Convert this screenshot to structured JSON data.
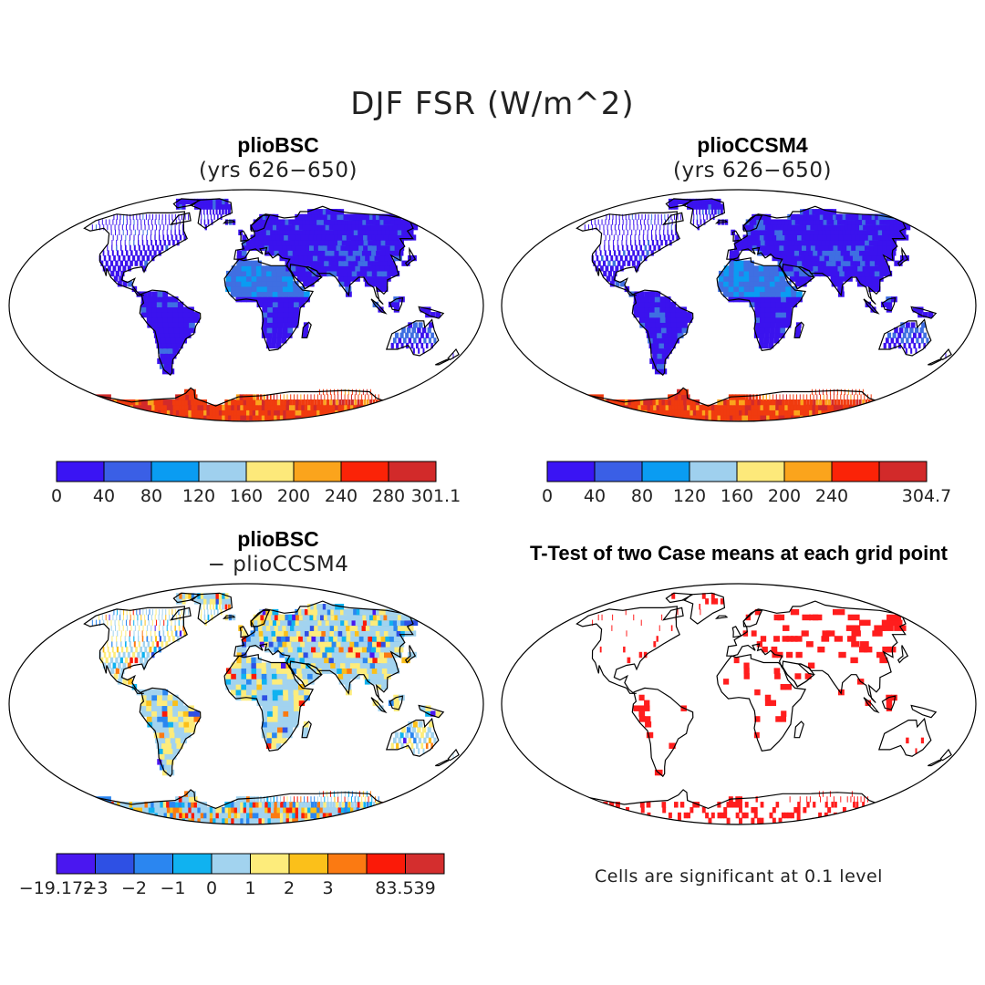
{
  "title": "DJF FSR (W/m^2)",
  "panels": [
    {
      "id": "p1",
      "title": "plioBSC",
      "subtitle": "(yrs 626−650)",
      "type": "field",
      "palette": "seq"
    },
    {
      "id": "p2",
      "title": "plioCCSM4",
      "subtitle": "(yrs 626−650)",
      "type": "field",
      "palette": "seq"
    },
    {
      "id": "p3",
      "title": "plioBSC",
      "subtitle": "− plioCCSM4",
      "type": "diff",
      "palette": "div"
    },
    {
      "id": "p4",
      "title": "T-Test of two Case means at each grid point",
      "subtitle": "",
      "type": "sig",
      "palette": "sig"
    }
  ],
  "colorbars": [
    {
      "id": "cb1",
      "colors": [
        "#3a14f4",
        "#3a5fe6",
        "#0a9cf2",
        "#9fd0ee",
        "#fde97a",
        "#fba41c",
        "#fb2307",
        "#d22a2a"
      ],
      "labels": [
        "0",
        "40",
        "80",
        "120",
        "160",
        "200",
        "240",
        "280",
        "301.1"
      ]
    },
    {
      "id": "cb2",
      "colors": [
        "#3a14f4",
        "#3a5fe6",
        "#0a9cf2",
        "#9fd0ee",
        "#fde97a",
        "#fba41c",
        "#fb2307",
        "#d22a2a"
      ],
      "labels": [
        "0",
        "40",
        "80",
        "120",
        "160",
        "200",
        "240",
        "",
        "304.7"
      ]
    },
    {
      "id": "cb3",
      "colors": [
        "#4a17f0",
        "#2e50e4",
        "#2b86f0",
        "#10b2f0",
        "#a2d3ef",
        "#fdec7b",
        "#fbc01a",
        "#fb7a12",
        "#fb1a08",
        "#d42e2e"
      ],
      "labels": [
        "−19.172",
        "−3",
        "−2",
        "−1",
        "0",
        "1",
        "2",
        "3",
        "",
        "83.539"
      ]
    }
  ],
  "note": "Cells are significant at 0.1 level",
  "colors": {
    "land": "#3b12ee",
    "land_mid": "#3f6fe2",
    "antarctica": "#f03b0f",
    "coast": "#000000",
    "sig": "#ff1d1d",
    "diff_base": "#a2d3ef",
    "diff_warm": "#fdec7b"
  }
}
